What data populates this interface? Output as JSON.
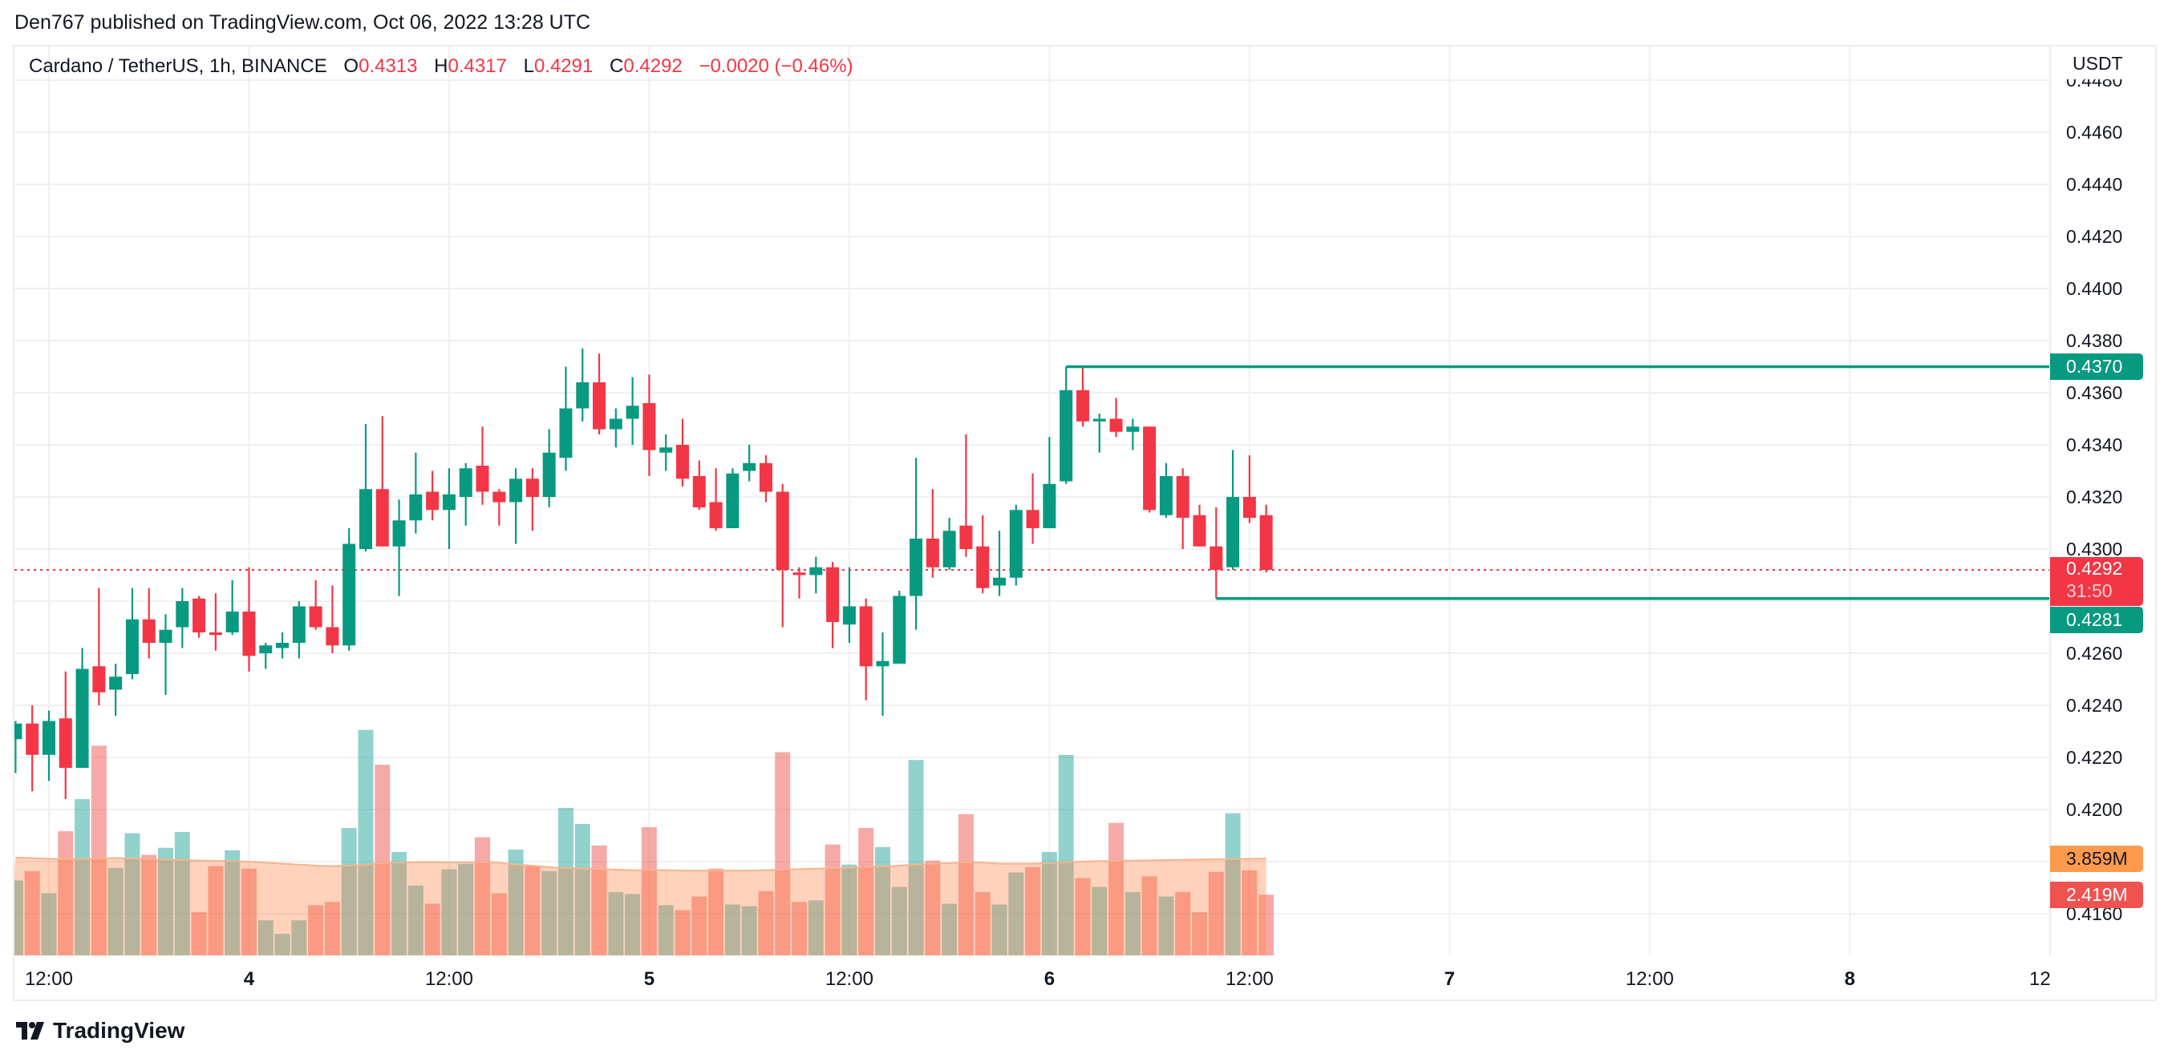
{
  "header": {
    "published": "Den767 published on TradingView.com, Oct 06, 2022 13:28 UTC"
  },
  "legend": {
    "symbol": "Cardano / TetherUS, 1h, BINANCE",
    "o_label": "O",
    "o": "0.4313",
    "h_label": "H",
    "h": "0.4317",
    "l_label": "L",
    "l": "0.4291",
    "c_label": "C",
    "c": "0.4292",
    "change": "−0.0020 (−0.46%)"
  },
  "price_axis": {
    "currency": "USDT",
    "labels": [
      "0.4480",
      "0.4460",
      "0.4440",
      "0.4420",
      "0.4400",
      "0.4380",
      "0.4360",
      "0.4340",
      "0.4320",
      "0.4300",
      "0.4260",
      "0.4240",
      "0.4220",
      "0.4200",
      "0.4160"
    ],
    "tags": [
      {
        "text": "0.4370",
        "price": 0.437,
        "color": "#089981"
      },
      {
        "text": "0.4292",
        "sub": "31:50",
        "price": 0.4292,
        "color": "#f23645"
      },
      {
        "text": "0.4281",
        "price": 0.4281,
        "color": "#089981"
      },
      {
        "text": "3.859M",
        "kind": "volume-ma",
        "color": "#ff9a4d"
      },
      {
        "text": "2.419M",
        "kind": "volume",
        "color": "#ef5350"
      }
    ]
  },
  "time_axis": {
    "ticks": [
      {
        "label": "12:00",
        "time": "2022-10-03T12:00",
        "day": false
      },
      {
        "label": "4",
        "time": "2022-10-04T00:00",
        "day": true
      },
      {
        "label": "12:00",
        "time": "2022-10-04T12:00",
        "day": false
      },
      {
        "label": "5",
        "time": "2022-10-05T00:00",
        "day": true
      },
      {
        "label": "12:00",
        "time": "2022-10-05T12:00",
        "day": false
      },
      {
        "label": "6",
        "time": "2022-10-06T00:00",
        "day": true
      },
      {
        "label": "12:00",
        "time": "2022-10-06T12:00",
        "day": false
      },
      {
        "label": "7",
        "time": "2022-10-07T00:00",
        "day": true
      },
      {
        "label": "12:00",
        "time": "2022-10-07T12:00",
        "day": false
      },
      {
        "label": "8",
        "time": "2022-10-08T00:00",
        "day": true
      },
      {
        "label": "12:",
        "time": "2022-10-08T12:00",
        "day": false
      }
    ]
  },
  "footer": {
    "brand": "TradingView"
  },
  "colors": {
    "up": "#089981",
    "down": "#f23645",
    "grid": "#f0f0f3",
    "ma_line": "#f7b48a"
  },
  "chart_data": {
    "type": "candlestick",
    "title": "Cardano / TetherUS, 1h, BINANCE",
    "interval": "1h",
    "first_time": "2022-10-03T10:00",
    "ylim": [
      0.415,
      0.449
    ],
    "grid": true,
    "columns": [
      "open",
      "high",
      "low",
      "close",
      "volume_M"
    ],
    "candles": [
      [
        0.4227,
        0.4234,
        0.4214,
        0.4233,
        2.99
      ],
      [
        0.4233,
        0.424,
        0.4207,
        0.4221,
        3.36
      ],
      [
        0.4221,
        0.4238,
        0.4211,
        0.4234,
        2.48
      ],
      [
        0.4235,
        0.4253,
        0.4204,
        0.4216,
        4.95
      ],
      [
        0.4216,
        0.4262,
        0.4216,
        0.4254,
        6.23
      ],
      [
        0.4255,
        0.4285,
        0.424,
        0.4245,
        8.36
      ],
      [
        0.4246,
        0.4256,
        0.4236,
        0.4251,
        3.49
      ],
      [
        0.4252,
        0.4285,
        0.425,
        0.4273,
        4.87
      ],
      [
        0.4273,
        0.4285,
        0.4258,
        0.4264,
        4.01
      ],
      [
        0.4264,
        0.4275,
        0.4244,
        0.4269,
        4.29
      ],
      [
        0.427,
        0.4285,
        0.4262,
        0.428,
        4.92
      ],
      [
        0.4281,
        0.4282,
        0.4266,
        0.4268,
        1.72
      ],
      [
        0.4268,
        0.4283,
        0.4261,
        0.4267,
        3.56
      ],
      [
        0.4268,
        0.4288,
        0.4267,
        0.4276,
        4.19
      ],
      [
        0.4276,
        0.4293,
        0.4253,
        0.4259,
        3.46
      ],
      [
        0.426,
        0.4264,
        0.4254,
        0.4263,
        1.4
      ],
      [
        0.4262,
        0.4268,
        0.4258,
        0.4264,
        0.86
      ],
      [
        0.4264,
        0.428,
        0.4258,
        0.4278,
        1.4
      ],
      [
        0.4278,
        0.4288,
        0.4269,
        0.427,
        2.0
      ],
      [
        0.427,
        0.4286,
        0.426,
        0.4263,
        2.13
      ],
      [
        0.4263,
        0.4308,
        0.4261,
        0.4302,
        5.08
      ],
      [
        0.43,
        0.4348,
        0.4299,
        0.4323,
        8.99
      ],
      [
        0.4323,
        0.4351,
        0.4301,
        0.4301,
        7.6
      ],
      [
        0.4301,
        0.4319,
        0.4282,
        0.4311,
        4.12
      ],
      [
        0.4311,
        0.4337,
        0.4306,
        0.4321,
        2.79
      ],
      [
        0.4322,
        0.433,
        0.4311,
        0.4315,
        2.06
      ],
      [
        0.4315,
        0.4331,
        0.43,
        0.4321,
        3.43
      ],
      [
        0.432,
        0.4333,
        0.4309,
        0.4331,
        3.65
      ],
      [
        0.4332,
        0.4347,
        0.4317,
        0.4322,
        4.71
      ],
      [
        0.4322,
        0.4323,
        0.4309,
        0.4318,
        2.48
      ],
      [
        0.4318,
        0.4331,
        0.4302,
        0.4327,
        4.22
      ],
      [
        0.4327,
        0.4331,
        0.4307,
        0.432,
        3.56
      ],
      [
        0.432,
        0.4346,
        0.4316,
        0.4337,
        3.36
      ],
      [
        0.4335,
        0.437,
        0.433,
        0.4354,
        5.88
      ],
      [
        0.4354,
        0.4377,
        0.4349,
        0.4364,
        5.24
      ],
      [
        0.4364,
        0.4375,
        0.4344,
        0.4346,
        4.38
      ],
      [
        0.4346,
        0.4354,
        0.4339,
        0.435,
        2.52
      ],
      [
        0.435,
        0.4366,
        0.434,
        0.4355,
        2.45
      ],
      [
        0.4356,
        0.4367,
        0.4328,
        0.4338,
        5.11
      ],
      [
        0.4337,
        0.4344,
        0.433,
        0.4339,
        2.0
      ],
      [
        0.434,
        0.435,
        0.4324,
        0.4327,
        1.8
      ],
      [
        0.4328,
        0.4334,
        0.4315,
        0.4316,
        2.35
      ],
      [
        0.4318,
        0.4331,
        0.4307,
        0.4308,
        3.46
      ],
      [
        0.4308,
        0.4331,
        0.4308,
        0.4329,
        2.03
      ],
      [
        0.433,
        0.434,
        0.4326,
        0.4333,
        1.96
      ],
      [
        0.4333,
        0.4336,
        0.4318,
        0.4322,
        2.56
      ],
      [
        0.4322,
        0.4325,
        0.427,
        0.4292,
        8.1
      ],
      [
        0.4291,
        0.4293,
        0.4281,
        0.429,
        2.13
      ],
      [
        0.429,
        0.4297,
        0.4283,
        0.4293,
        2.19
      ],
      [
        0.4293,
        0.4295,
        0.4262,
        0.4272,
        4.42
      ],
      [
        0.4271,
        0.4293,
        0.4264,
        0.4278,
        3.62
      ],
      [
        0.4278,
        0.4281,
        0.4242,
        0.4255,
        5.08
      ],
      [
        0.4255,
        0.4268,
        0.4236,
        0.4257,
        4.32
      ],
      [
        0.4256,
        0.4284,
        0.4256,
        0.4282,
        2.73
      ],
      [
        0.4282,
        0.4335,
        0.4269,
        0.4304,
        7.79
      ],
      [
        0.4304,
        0.4323,
        0.4289,
        0.4293,
        3.78
      ],
      [
        0.4293,
        0.4312,
        0.4292,
        0.4307,
        2.06
      ],
      [
        0.4309,
        0.4344,
        0.4297,
        0.43,
        5.63
      ],
      [
        0.4301,
        0.4313,
        0.4283,
        0.4285,
        2.53
      ],
      [
        0.4286,
        0.4307,
        0.4282,
        0.4289,
        2.03
      ],
      [
        0.4289,
        0.4317,
        0.4286,
        0.4315,
        3.31
      ],
      [
        0.4315,
        0.4329,
        0.4302,
        0.4308,
        3.52
      ],
      [
        0.4308,
        0.4343,
        0.4308,
        0.4325,
        4.12
      ],
      [
        0.4326,
        0.437,
        0.4325,
        0.4361,
        7.99
      ],
      [
        0.4361,
        0.437,
        0.4347,
        0.4349,
        3.08
      ],
      [
        0.4349,
        0.4352,
        0.4337,
        0.435,
        2.73
      ],
      [
        0.435,
        0.4358,
        0.4343,
        0.4345,
        5.28
      ],
      [
        0.4345,
        0.435,
        0.4338,
        0.4347,
        2.53
      ],
      [
        0.4347,
        0.4347,
        0.4314,
        0.4315,
        3.15
      ],
      [
        0.4313,
        0.4333,
        0.4312,
        0.4328,
        2.35
      ],
      [
        0.4328,
        0.4331,
        0.43,
        0.4312,
        2.53
      ],
      [
        0.4313,
        0.4317,
        0.4301,
        0.4301,
        1.72
      ],
      [
        0.4301,
        0.4316,
        0.4281,
        0.4292,
        3.33
      ],
      [
        0.4293,
        0.4338,
        0.4292,
        0.432,
        5.67
      ],
      [
        0.432,
        0.4336,
        0.431,
        0.4312,
        3.39
      ],
      [
        0.4313,
        0.4317,
        0.4291,
        0.4292,
        2.419
      ]
    ],
    "volume_ma_M": [
      3.9,
      3.88,
      3.85,
      3.84,
      3.84,
      3.86,
      3.88,
      3.86,
      3.84,
      3.82,
      3.8,
      3.78,
      3.77,
      3.76,
      3.74,
      3.7,
      3.66,
      3.62,
      3.58,
      3.56,
      3.58,
      3.62,
      3.68,
      3.7,
      3.72,
      3.72,
      3.71,
      3.71,
      3.72,
      3.7,
      3.62,
      3.58,
      3.52,
      3.48,
      3.46,
      3.45,
      3.42,
      3.4,
      3.4,
      3.4,
      3.38,
      3.38,
      3.38,
      3.38,
      3.38,
      3.4,
      3.42,
      3.44,
      3.46,
      3.48,
      3.5,
      3.52,
      3.55,
      3.58,
      3.62,
      3.66,
      3.68,
      3.72,
      3.7,
      3.66,
      3.66,
      3.66,
      3.68,
      3.72,
      3.74,
      3.76,
      3.77,
      3.78,
      3.79,
      3.8,
      3.81,
      3.82,
      3.83,
      3.84,
      3.85,
      3.859
    ],
    "horizontal_lines": [
      {
        "price": 0.437,
        "from_time": "2022-10-06T01:00",
        "color": "#089981"
      },
      {
        "price": 0.4281,
        "from_time": "2022-10-06T10:00",
        "color": "#089981"
      }
    ],
    "last_price_line": {
      "price": 0.4292,
      "color": "#f23645"
    }
  }
}
